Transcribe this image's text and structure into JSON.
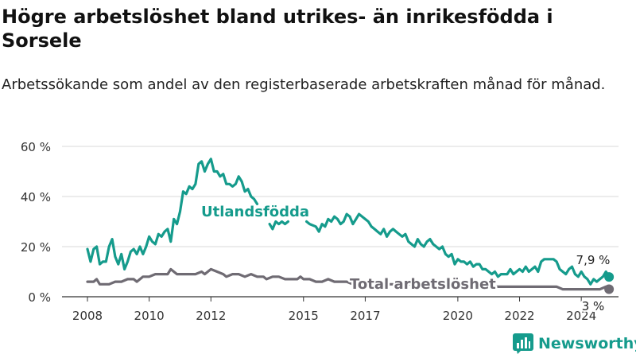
{
  "title": "Högre arbetslöshet bland utrikes- än inrikesfödda i Sorsele",
  "subtitle": "Arbetssökande som andel av den registerbaserade arbetskraften månad för månad.",
  "brand": {
    "name": "Newsworthy",
    "icon": "bar-chart-logo-icon",
    "color": "#159b8c"
  },
  "chart_data": {
    "type": "line",
    "title": "Högre arbetslöshet bland utrikes- än inrikesfödda i Sorsele",
    "subtitle": "Arbetssökande som andel av den registerbaserade arbetskraften månad för månad.",
    "xlabel": "",
    "ylabel": "",
    "xlim": [
      2007.5,
      2025.2
    ],
    "ylim": [
      0,
      60
    ],
    "x_ticks": [
      2008,
      2010,
      2012,
      2015,
      2017,
      2020,
      2022,
      2024
    ],
    "y_ticks": [
      0,
      20,
      40,
      60
    ],
    "y_tick_labels": [
      "0 %",
      "20 %",
      "40 %",
      "60 %"
    ],
    "grid": true,
    "legend": "inline labels",
    "series": [
      {
        "name": "Utlandsfödda",
        "color": "#159b8c",
        "end_label": "7,9 %",
        "points": [
          [
            2008.0,
            19
          ],
          [
            2008.1,
            14
          ],
          [
            2008.2,
            19
          ],
          [
            2008.3,
            20
          ],
          [
            2008.4,
            13
          ],
          [
            2008.5,
            14
          ],
          [
            2008.6,
            14
          ],
          [
            2008.7,
            20
          ],
          [
            2008.8,
            23
          ],
          [
            2008.9,
            16
          ],
          [
            2009.0,
            13
          ],
          [
            2009.1,
            17
          ],
          [
            2009.2,
            11
          ],
          [
            2009.3,
            14
          ],
          [
            2009.4,
            18
          ],
          [
            2009.5,
            19
          ],
          [
            2009.6,
            17
          ],
          [
            2009.7,
            20
          ],
          [
            2009.8,
            17
          ],
          [
            2009.9,
            20
          ],
          [
            2010.0,
            24
          ],
          [
            2010.1,
            22
          ],
          [
            2010.2,
            21
          ],
          [
            2010.3,
            25
          ],
          [
            2010.4,
            24
          ],
          [
            2010.5,
            26
          ],
          [
            2010.6,
            27
          ],
          [
            2010.7,
            22
          ],
          [
            2010.8,
            31
          ],
          [
            2010.9,
            29
          ],
          [
            2011.0,
            34
          ],
          [
            2011.1,
            42
          ],
          [
            2011.2,
            41
          ],
          [
            2011.3,
            44
          ],
          [
            2011.4,
            43
          ],
          [
            2011.5,
            45
          ],
          [
            2011.6,
            53
          ],
          [
            2011.7,
            54
          ],
          [
            2011.8,
            50
          ],
          [
            2011.9,
            53
          ],
          [
            2012.0,
            55
          ],
          [
            2012.1,
            50
          ],
          [
            2012.2,
            50
          ],
          [
            2012.3,
            48
          ],
          [
            2012.4,
            49
          ],
          [
            2012.5,
            45
          ],
          [
            2012.6,
            45
          ],
          [
            2012.7,
            44
          ],
          [
            2012.8,
            45
          ],
          [
            2012.9,
            48
          ],
          [
            2013.0,
            46
          ],
          [
            2013.1,
            42
          ],
          [
            2013.2,
            43
          ],
          [
            2013.3,
            40
          ],
          [
            2013.4,
            39
          ],
          [
            2013.5,
            37
          ],
          [
            null,
            null
          ],
          [
            2013.9,
            29
          ],
          [
            2014.0,
            27
          ],
          [
            2014.1,
            30
          ],
          [
            2014.2,
            29
          ],
          [
            2014.3,
            30
          ],
          [
            2014.4,
            29
          ],
          [
            2014.5,
            30
          ],
          [
            null,
            null
          ],
          [
            2015.1,
            30
          ],
          [
            2015.2,
            29
          ],
          [
            2015.4,
            28
          ],
          [
            2015.5,
            26
          ],
          [
            2015.6,
            29
          ],
          [
            2015.7,
            28
          ],
          [
            2015.8,
            31
          ],
          [
            2015.9,
            30
          ],
          [
            2016.0,
            32
          ],
          [
            2016.1,
            31
          ],
          [
            2016.2,
            29
          ],
          [
            2016.3,
            30
          ],
          [
            2016.4,
            33
          ],
          [
            2016.5,
            32
          ],
          [
            2016.6,
            29
          ],
          [
            2016.7,
            31
          ],
          [
            2016.8,
            33
          ],
          [
            2016.9,
            32
          ],
          [
            2017.0,
            31
          ],
          [
            2017.1,
            30
          ],
          [
            2017.2,
            28
          ],
          [
            2017.3,
            27
          ],
          [
            2017.4,
            26
          ],
          [
            2017.5,
            25
          ],
          [
            2017.6,
            27
          ],
          [
            2017.7,
            24
          ],
          [
            2017.8,
            26
          ],
          [
            2017.9,
            27
          ],
          [
            2018.0,
            26
          ],
          [
            2018.1,
            25
          ],
          [
            2018.2,
            24
          ],
          [
            2018.3,
            25
          ],
          [
            2018.4,
            22
          ],
          [
            2018.5,
            21
          ],
          [
            2018.6,
            20
          ],
          [
            2018.7,
            23
          ],
          [
            2018.8,
            21
          ],
          [
            2018.9,
            20
          ],
          [
            2019.0,
            22
          ],
          [
            2019.1,
            23
          ],
          [
            2019.2,
            21
          ],
          [
            2019.3,
            20
          ],
          [
            2019.4,
            19
          ],
          [
            2019.5,
            20
          ],
          [
            2019.6,
            17
          ],
          [
            2019.7,
            16
          ],
          [
            2019.8,
            17
          ],
          [
            2019.9,
            13
          ],
          [
            2020.0,
            15
          ],
          [
            2020.1,
            14
          ],
          [
            2020.2,
            14
          ],
          [
            2020.3,
            13
          ],
          [
            2020.4,
            14
          ],
          [
            2020.5,
            12
          ],
          [
            2020.6,
            13
          ],
          [
            2020.7,
            13
          ],
          [
            2020.8,
            11
          ],
          [
            2020.9,
            11
          ],
          [
            2021.0,
            10
          ],
          [
            2021.1,
            9
          ],
          [
            2021.2,
            10
          ],
          [
            2021.3,
            8
          ],
          [
            2021.4,
            9
          ],
          [
            2021.5,
            9
          ],
          [
            2021.6,
            9
          ],
          [
            2021.7,
            11
          ],
          [
            2021.8,
            9
          ],
          [
            2021.9,
            10
          ],
          [
            2022.0,
            11
          ],
          [
            2022.1,
            10
          ],
          [
            2022.2,
            12
          ],
          [
            2022.3,
            10
          ],
          [
            2022.4,
            11
          ],
          [
            2022.5,
            12
          ],
          [
            2022.6,
            10
          ],
          [
            2022.7,
            14
          ],
          [
            2022.8,
            15
          ],
          [
            2022.9,
            15
          ],
          [
            2023.0,
            15
          ],
          [
            2023.1,
            15
          ],
          [
            2023.2,
            14
          ],
          [
            2023.3,
            11
          ],
          [
            2023.4,
            10
          ],
          [
            2023.5,
            9
          ],
          [
            2023.6,
            11
          ],
          [
            2023.7,
            12
          ],
          [
            2023.8,
            9
          ],
          [
            2023.9,
            8
          ],
          [
            2024.0,
            10
          ],
          [
            2024.1,
            8
          ],
          [
            2024.2,
            7
          ],
          [
            2024.3,
            5
          ],
          [
            2024.4,
            7
          ],
          [
            2024.5,
            6
          ],
          [
            2024.6,
            7
          ],
          [
            2024.7,
            8
          ],
          [
            2024.8,
            10
          ],
          [
            2024.9,
            7.9
          ]
        ]
      },
      {
        "name": "Total arbetslöshet",
        "color": "#6f6b73",
        "end_label": "3 %",
        "points": [
          [
            2008.0,
            6
          ],
          [
            2008.2,
            6
          ],
          [
            2008.3,
            7
          ],
          [
            2008.4,
            5
          ],
          [
            2008.5,
            5
          ],
          [
            2008.7,
            5
          ],
          [
            2008.9,
            6
          ],
          [
            2009.1,
            6
          ],
          [
            2009.3,
            7
          ],
          [
            2009.5,
            7
          ],
          [
            2009.6,
            6
          ],
          [
            2009.8,
            8
          ],
          [
            2010.0,
            8
          ],
          [
            2010.2,
            9
          ],
          [
            2010.4,
            9
          ],
          [
            2010.6,
            9
          ],
          [
            2010.7,
            11
          ],
          [
            2010.9,
            9
          ],
          [
            2011.1,
            9
          ],
          [
            2011.3,
            9
          ],
          [
            2011.5,
            9
          ],
          [
            2011.7,
            10
          ],
          [
            2011.8,
            9
          ],
          [
            2012.0,
            11
          ],
          [
            2012.2,
            10
          ],
          [
            2012.4,
            9
          ],
          [
            2012.5,
            8
          ],
          [
            2012.7,
            9
          ],
          [
            2012.9,
            9
          ],
          [
            2013.1,
            8
          ],
          [
            2013.3,
            9
          ],
          [
            2013.5,
            8
          ],
          [
            2013.7,
            8
          ],
          [
            2013.8,
            7
          ],
          [
            2014.0,
            8
          ],
          [
            2014.2,
            8
          ],
          [
            2014.4,
            7
          ],
          [
            2014.6,
            7
          ],
          [
            2014.8,
            7
          ],
          [
            2014.9,
            8
          ],
          [
            2015.0,
            7
          ],
          [
            2015.2,
            7
          ],
          [
            2015.4,
            6
          ],
          [
            2015.6,
            6
          ],
          [
            2015.8,
            7
          ],
          [
            2016.0,
            6
          ],
          [
            2016.2,
            6
          ],
          [
            2016.4,
            6
          ],
          [
            2016.6,
            5
          ],
          [
            2016.8,
            6
          ],
          [
            2017.0,
            6
          ],
          [
            2017.2,
            5
          ],
          [
            2017.4,
            5
          ],
          [
            2017.6,
            5
          ],
          [
            2017.8,
            5
          ],
          [
            2018.0,
            5
          ],
          [
            2018.2,
            5
          ],
          [
            2018.4,
            5
          ],
          [
            2018.6,
            5
          ],
          [
            2018.8,
            5
          ],
          [
            2019.0,
            5
          ],
          [
            2019.2,
            5
          ],
          [
            2019.4,
            5
          ],
          [
            2019.6,
            4
          ],
          [
            2019.8,
            5
          ],
          [
            2020.0,
            5
          ],
          [
            2020.2,
            5
          ],
          [
            2020.4,
            5
          ],
          [
            2020.6,
            5
          ],
          [
            2020.8,
            5
          ],
          [
            2021.0,
            4
          ],
          [
            2021.2,
            4
          ],
          [
            2021.4,
            4
          ],
          [
            2021.6,
            4
          ],
          [
            2021.8,
            4
          ],
          [
            2022.0,
            4
          ],
          [
            2022.2,
            4
          ],
          [
            2022.4,
            4
          ],
          [
            2022.6,
            4
          ],
          [
            2022.8,
            4
          ],
          [
            2023.0,
            4
          ],
          [
            2023.2,
            4
          ],
          [
            2023.4,
            3
          ],
          [
            2023.6,
            3
          ],
          [
            2023.8,
            3
          ],
          [
            2024.0,
            3
          ],
          [
            2024.2,
            3
          ],
          [
            2024.4,
            3
          ],
          [
            2024.6,
            3
          ],
          [
            2024.8,
            4
          ],
          [
            2024.9,
            3
          ]
        ]
      }
    ]
  }
}
